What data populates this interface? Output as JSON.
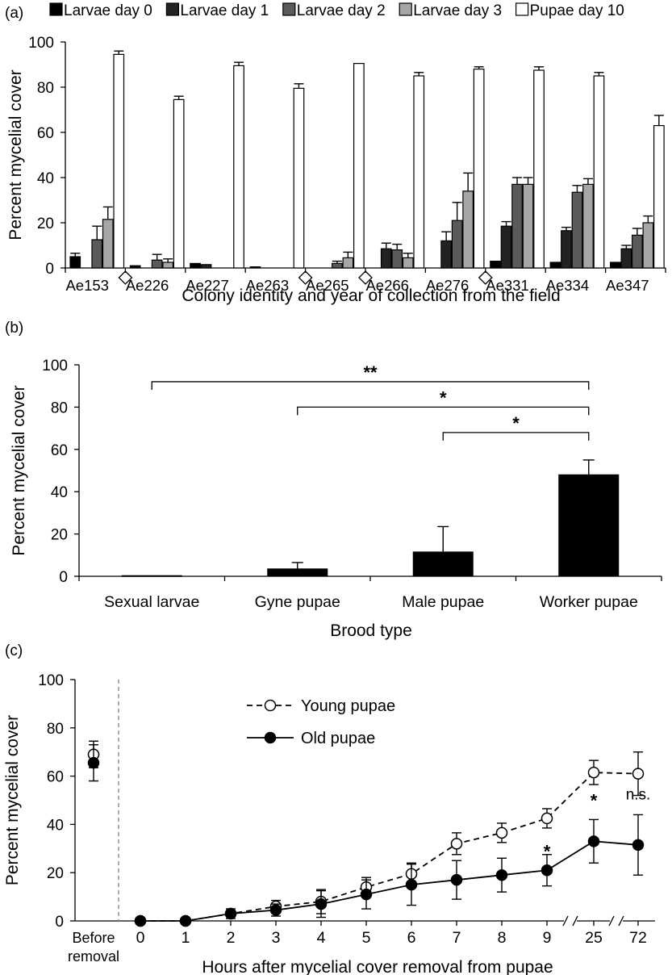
{
  "chart_data": [
    {
      "panel_label": "(a)",
      "type": "bar",
      "xlabel": "Colony identity and year of collection from the field",
      "ylabel": "Percent mycelial cover",
      "ylim": [
        0,
        100
      ],
      "yticks": [
        "0",
        "20",
        "40",
        "60",
        "80",
        "100"
      ],
      "legend_position": "top",
      "categories": [
        "Ae153",
        "Ae226",
        "Ae227",
        "Ae263",
        "Ae265",
        "Ae266",
        "Ae276",
        "Ae331",
        "Ae334",
        "Ae347"
      ],
      "diamond_markers_after": [
        "Ae153",
        "Ae263",
        "Ae265",
        "Ae276"
      ],
      "series": [
        {
          "name": "Larvae day 0",
          "color": "#000000",
          "values": [
            5,
            1,
            2,
            0.5,
            0,
            0,
            0,
            3,
            2.5,
            2.5
          ],
          "errors": [
            1.5,
            0,
            0,
            0,
            0,
            0,
            0,
            0,
            0,
            0
          ]
        },
        {
          "name": "Larvae day 1",
          "color": "#222222",
          "values": [
            0,
            0,
            1.5,
            0,
            0,
            8.5,
            12,
            18.5,
            16.5,
            8.5
          ],
          "errors": [
            0,
            0,
            0,
            0,
            0,
            2.5,
            4,
            2,
            1.5,
            1.5
          ]
        },
        {
          "name": "Larvae day 2",
          "color": "#5a5a5a",
          "values": [
            12.5,
            3.5,
            0,
            0,
            2,
            8,
            21,
            37,
            33.5,
            14.5
          ],
          "errors": [
            6,
            2.5,
            0,
            0,
            1,
            2.5,
            8,
            3,
            3,
            3
          ]
        },
        {
          "name": "Larvae day 3",
          "color": "#a6a6a6",
          "values": [
            21.5,
            2.5,
            0,
            0,
            4.5,
            4.5,
            34,
            37,
            37,
            20
          ],
          "errors": [
            5.5,
            1.5,
            0,
            0,
            2.5,
            2,
            8,
            3,
            2.5,
            3
          ]
        },
        {
          "name": "Pupae day 10",
          "color": "#ffffff",
          "values": [
            94.5,
            74.5,
            89.5,
            79.5,
            90.5,
            85,
            88,
            87.5,
            85,
            63
          ],
          "errors": [
            1.5,
            1.5,
            1.5,
            2,
            0,
            1.5,
            1,
            1.5,
            1.5,
            4.5
          ]
        }
      ]
    },
    {
      "panel_label": "(b)",
      "type": "bar",
      "xlabel": "Brood type",
      "ylabel": "Percent mycelial cover",
      "ylim": [
        0,
        100
      ],
      "yticks": [
        "0",
        "20",
        "40",
        "60",
        "80",
        "100"
      ],
      "categories": [
        "Sexual larvae",
        "Gyne pupae",
        "Male pupae",
        "Worker pupae"
      ],
      "values": [
        0.3,
        3.5,
        11.5,
        48
      ],
      "errors": [
        0,
        3,
        12,
        7
      ],
      "color": "#000000",
      "significance": [
        {
          "from": "Sexual larvae",
          "to": "Worker pupae",
          "label": "**",
          "level": 92
        },
        {
          "from": "Gyne pupae",
          "to": "Worker pupae",
          "label": "*",
          "level": 80
        },
        {
          "from": "Male pupae",
          "to": "Worker pupae",
          "label": "*",
          "level": 68
        }
      ]
    },
    {
      "panel_label": "(c)",
      "type": "line",
      "xlabel": "Hours after mycelial cover removal from pupae",
      "ylabel": "Percent mycelial cover",
      "ylim": [
        0,
        100
      ],
      "yticks": [
        "0",
        "20",
        "40",
        "60",
        "80",
        "100"
      ],
      "x_categories": [
        "Before removal",
        "0",
        "1",
        "2",
        "3",
        "4",
        "5",
        "6",
        "7",
        "8",
        "9",
        "25",
        "72"
      ],
      "before_label_lines": [
        "Before",
        "removal"
      ],
      "axis_breaks_between": [
        [
          "9",
          "25"
        ],
        [
          "25",
          "72"
        ]
      ],
      "legend_position": "top-center",
      "series": [
        {
          "name": "Young pupae",
          "style": "dashed",
          "marker": "open-circle",
          "before": 69,
          "before_error": 5.5,
          "x": [
            "0",
            "1",
            "2",
            "3",
            "4",
            "5",
            "6",
            "7",
            "8",
            "9",
            "25",
            "72"
          ],
          "values": [
            0,
            0,
            3,
            6,
            8,
            14,
            19.5,
            32,
            36.5,
            42.5,
            61.5,
            61
          ],
          "errors": [
            0,
            0,
            1,
            2.5,
            5,
            4,
            4.5,
            4.5,
            4,
            4,
            5,
            9
          ]
        },
        {
          "name": "Old pupae",
          "style": "solid",
          "marker": "filled-circle",
          "before": 65.5,
          "before_error": 7.5,
          "x": [
            "0",
            "1",
            "2",
            "3",
            "4",
            "5",
            "6",
            "7",
            "8",
            "9",
            "25",
            "72"
          ],
          "values": [
            0,
            0,
            3,
            4.5,
            7,
            11,
            15,
            17,
            19,
            21,
            33,
            31.5
          ],
          "errors": [
            0,
            0,
            2,
            2.5,
            5.5,
            6,
            8.5,
            8,
            7,
            6.5,
            9,
            12.5
          ]
        }
      ],
      "annotations": [
        {
          "x": "9",
          "y": 29,
          "text": "*"
        },
        {
          "x": "25",
          "y": 50,
          "text": "*"
        },
        {
          "x": "72",
          "y": 53,
          "text": "n.s."
        }
      ]
    }
  ]
}
